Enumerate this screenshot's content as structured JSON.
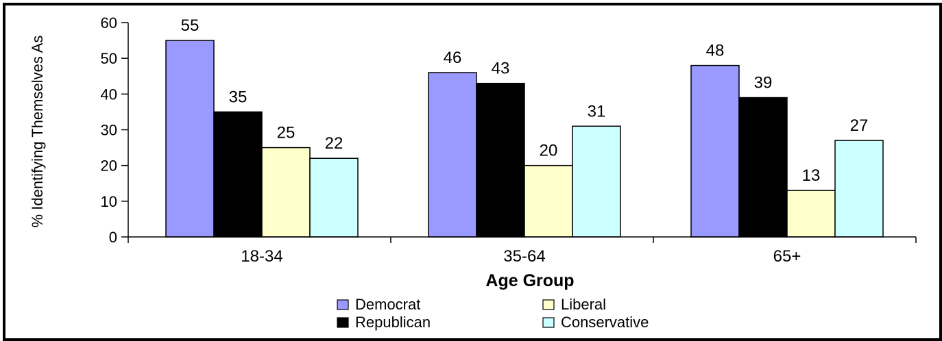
{
  "chart_data": {
    "type": "bar",
    "categories": [
      "18-34",
      "35-64",
      "65+"
    ],
    "series": [
      {
        "name": "Democrat",
        "values": [
          55,
          46,
          48
        ],
        "color": "#9999ff"
      },
      {
        "name": "Republican",
        "values": [
          35,
          43,
          39
        ],
        "color": "#000000"
      },
      {
        "name": "Liberal",
        "values": [
          25,
          20,
          13
        ],
        "color": "#ffffcc"
      },
      {
        "name": "Conservative",
        "values": [
          22,
          31,
          27
        ],
        "color": "#ccffff"
      }
    ],
    "title": "",
    "xlabel": "Age Group",
    "ylabel": "% Identifying Themselves As",
    "ylim": [
      0,
      60
    ],
    "yticks": [
      0,
      10,
      20,
      30,
      40,
      50,
      60
    ],
    "grid": false,
    "legend_position": "bottom-center",
    "data_labels": true
  }
}
